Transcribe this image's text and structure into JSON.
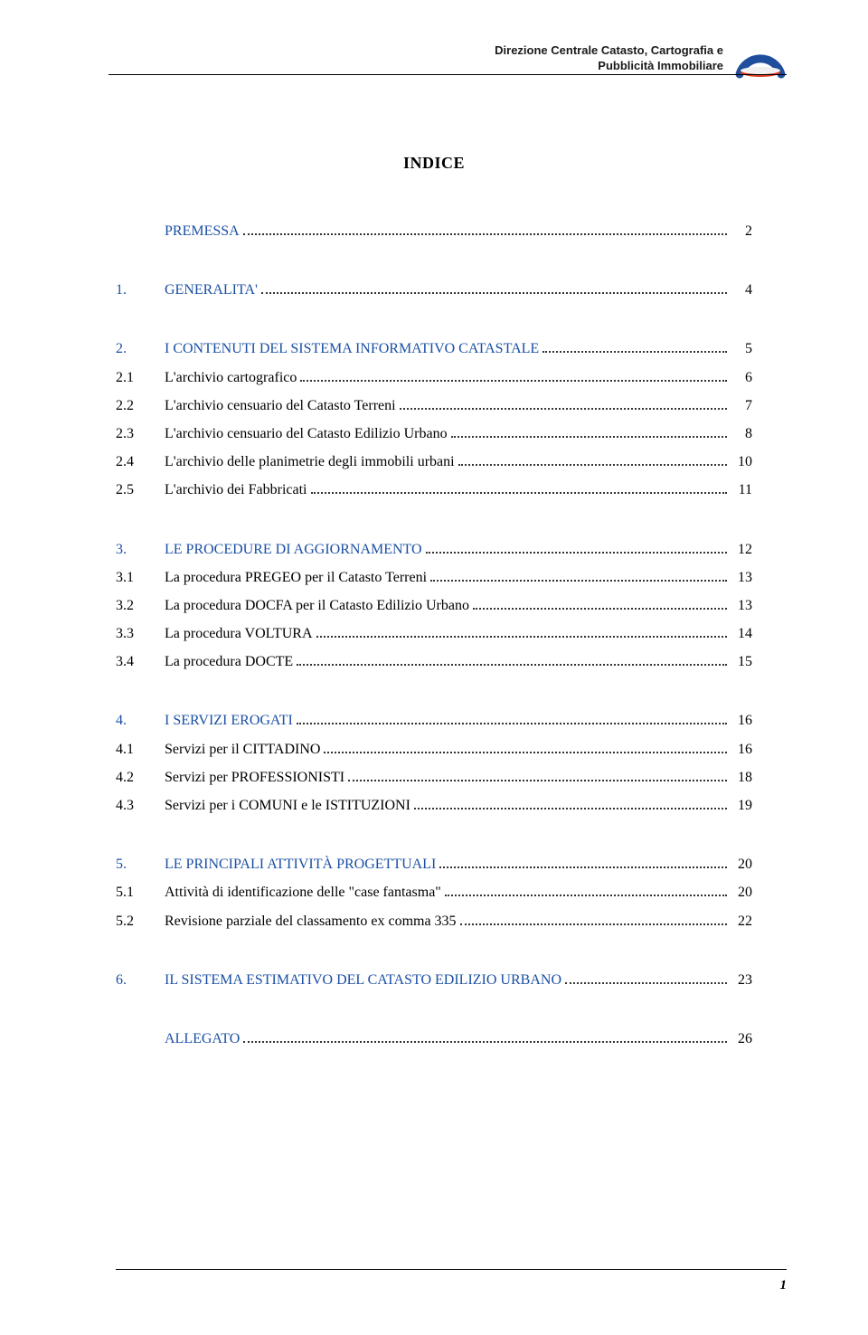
{
  "header": {
    "line1": "Direzione Centrale Catasto, Cartografia e",
    "line2": "Pubblicità Immobiliare"
  },
  "logo_colors": {
    "arc": "#1f4e9c",
    "bar": "#d9381e"
  },
  "title": "INDICE",
  "page_number": "1",
  "toc": [
    {
      "entries": [
        {
          "num": "",
          "label": "PREMESSA",
          "page": "2",
          "blue": true,
          "num_blue": false
        }
      ]
    },
    {
      "entries": [
        {
          "num": "1.",
          "label": "GENERALITA'",
          "page": "4",
          "blue": true,
          "num_blue": true
        }
      ]
    },
    {
      "entries": [
        {
          "num": "2.",
          "label": "I CONTENUTI DEL SISTEMA INFORMATIVO CATASTALE",
          "page": "5",
          "blue": true,
          "num_blue": true
        },
        {
          "num": "2.1",
          "label": "L'archivio cartografico",
          "page": "6",
          "blue": false,
          "num_blue": false
        },
        {
          "num": "2.2",
          "label": "L'archivio censuario del Catasto Terreni",
          "page": "7",
          "blue": false,
          "num_blue": false
        },
        {
          "num": "2.3",
          "label": "L'archivio censuario del Catasto Edilizio Urbano",
          "page": "8",
          "blue": false,
          "num_blue": false
        },
        {
          "num": "2.4",
          "label": "L'archivio delle planimetrie degli immobili urbani",
          "page": "10",
          "blue": false,
          "num_blue": false
        },
        {
          "num": "2.5",
          "label": "L'archivio dei Fabbricati",
          "page": "11",
          "blue": false,
          "num_blue": false
        }
      ]
    },
    {
      "entries": [
        {
          "num": "3.",
          "label": "LE PROCEDURE DI AGGIORNAMENTO",
          "page": "12",
          "blue": true,
          "num_blue": true
        },
        {
          "num": "3.1",
          "label": "La procedura PREGEO per il Catasto Terreni",
          "page": "13",
          "blue": false,
          "num_blue": false
        },
        {
          "num": "3.2",
          "label": "La procedura DOCFA per il Catasto Edilizio Urbano",
          "page": "13",
          "blue": false,
          "num_blue": false
        },
        {
          "num": "3.3",
          "label": "La procedura VOLTURA",
          "page": "14",
          "blue": false,
          "num_blue": false
        },
        {
          "num": "3.4",
          "label": "La procedura DOCTE",
          "page": "15",
          "blue": false,
          "num_blue": false
        }
      ]
    },
    {
      "entries": [
        {
          "num": "4.",
          "label": "I SERVIZI EROGATI",
          "page": "16",
          "blue": true,
          "num_blue": true
        },
        {
          "num": "4.1",
          "label": "Servizi per il CITTADINO",
          "page": "16",
          "blue": false,
          "num_blue": false
        },
        {
          "num": "4.2",
          "label": "Servizi per PROFESSIONISTI",
          "page": "18",
          "blue": false,
          "num_blue": false
        },
        {
          "num": "4.3",
          "label": "Servizi per i COMUNI e le ISTITUZIONI",
          "page": "19",
          "blue": false,
          "num_blue": false
        }
      ]
    },
    {
      "entries": [
        {
          "num": "5.",
          "label": "LE PRINCIPALI ATTIVITÀ PROGETTUALI",
          "page": "20",
          "blue": true,
          "num_blue": true
        },
        {
          "num": "5.1",
          "label": "Attività di identificazione delle \"case fantasma\"",
          "page": "20",
          "blue": false,
          "num_blue": false
        },
        {
          "num": "5.2",
          "label": "Revisione parziale del classamento ex comma 335",
          "page": "22",
          "blue": false,
          "num_blue": false
        }
      ]
    },
    {
      "entries": [
        {
          "num": "6.",
          "label": "IL SISTEMA ESTIMATIVO DEL CATASTO EDILIZIO URBANO",
          "page": "23",
          "blue": true,
          "num_blue": true
        }
      ]
    },
    {
      "entries": [
        {
          "num": "",
          "label": "ALLEGATO",
          "page": "26",
          "blue": true,
          "num_blue": false
        }
      ]
    }
  ]
}
